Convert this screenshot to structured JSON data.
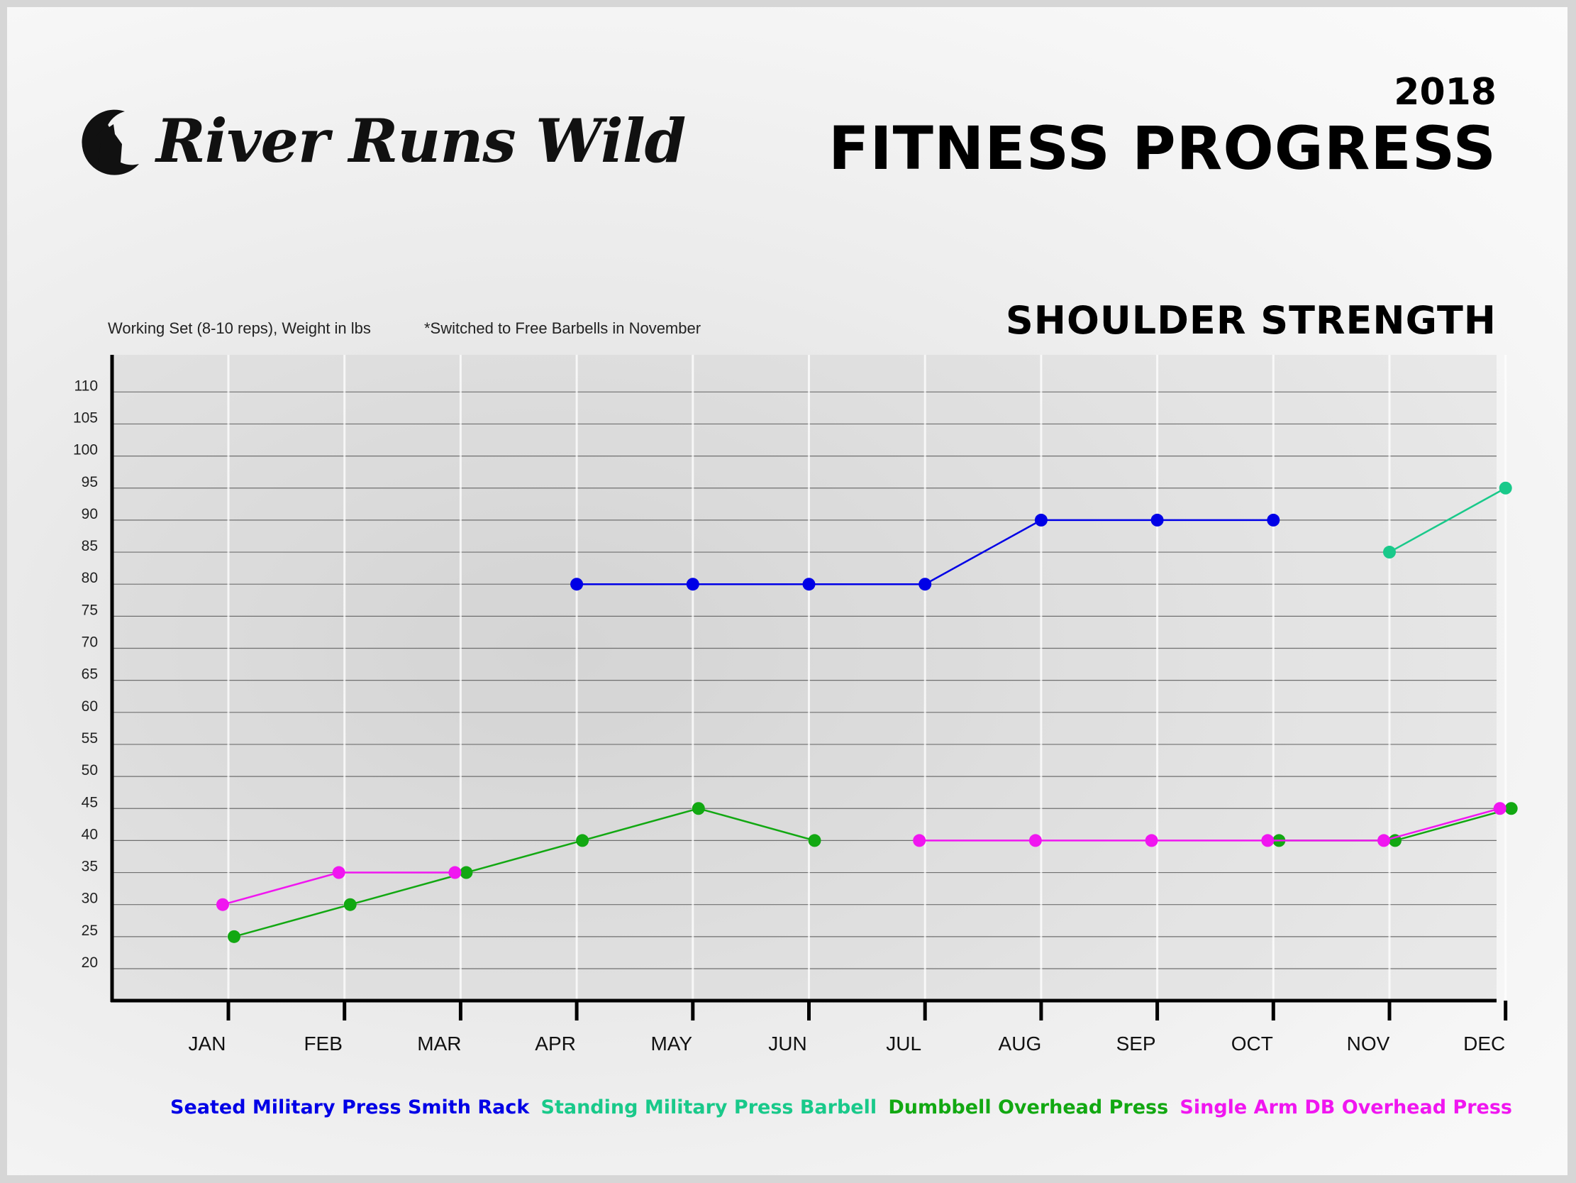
{
  "brand": {
    "name": "River Runs Wild"
  },
  "header": {
    "year": "2018",
    "title": "FITNESS PROGRESS"
  },
  "notes": {
    "working_set": "Working Set (8-10 reps), Weight in lbs",
    "switch_note": "*Switched to Free Barbells in November"
  },
  "section_title": "SHOULDER STRENGTH",
  "colors": {
    "seated": "#0000e6",
    "standing": "#19c98a",
    "dumbbell": "#12a812",
    "single_arm": "#f016f0",
    "axis": "#000000",
    "grid": "#6f6f6f"
  },
  "chart_data": {
    "type": "line",
    "title": "SHOULDER STRENGTH",
    "xlabel": "",
    "ylabel": "",
    "categories": [
      "JAN",
      "FEB",
      "MAR",
      "APR",
      "MAY",
      "JUN",
      "JUL",
      "AUG",
      "SEP",
      "OCT",
      "NOV",
      "DEC"
    ],
    "y_ticks": [
      20,
      25,
      30,
      35,
      40,
      45,
      50,
      55,
      60,
      65,
      70,
      75,
      80,
      85,
      90,
      95,
      100,
      105,
      110
    ],
    "ylim": [
      15,
      115
    ],
    "grid": true,
    "legend_position": "bottom",
    "series": [
      {
        "name": "Seated Military Press Smith Rack",
        "color": "#0000e6",
        "values": [
          null,
          null,
          null,
          80,
          80,
          80,
          80,
          90,
          90,
          90,
          null,
          null
        ]
      },
      {
        "name": "Standing Military Press Barbell",
        "color": "#19c98a",
        "values": [
          null,
          null,
          null,
          null,
          null,
          null,
          null,
          null,
          null,
          null,
          85,
          95
        ]
      },
      {
        "name": "Dumbbell Overhead Press",
        "color": "#12a812",
        "values": [
          25,
          30,
          35,
          40,
          45,
          40,
          null,
          null,
          null,
          40,
          40,
          45
        ]
      },
      {
        "name": "Single Arm DB Overhead Press",
        "color": "#f016f0",
        "values": [
          30,
          35,
          35,
          null,
          null,
          null,
          40,
          40,
          40,
          40,
          40,
          45
        ]
      }
    ]
  }
}
